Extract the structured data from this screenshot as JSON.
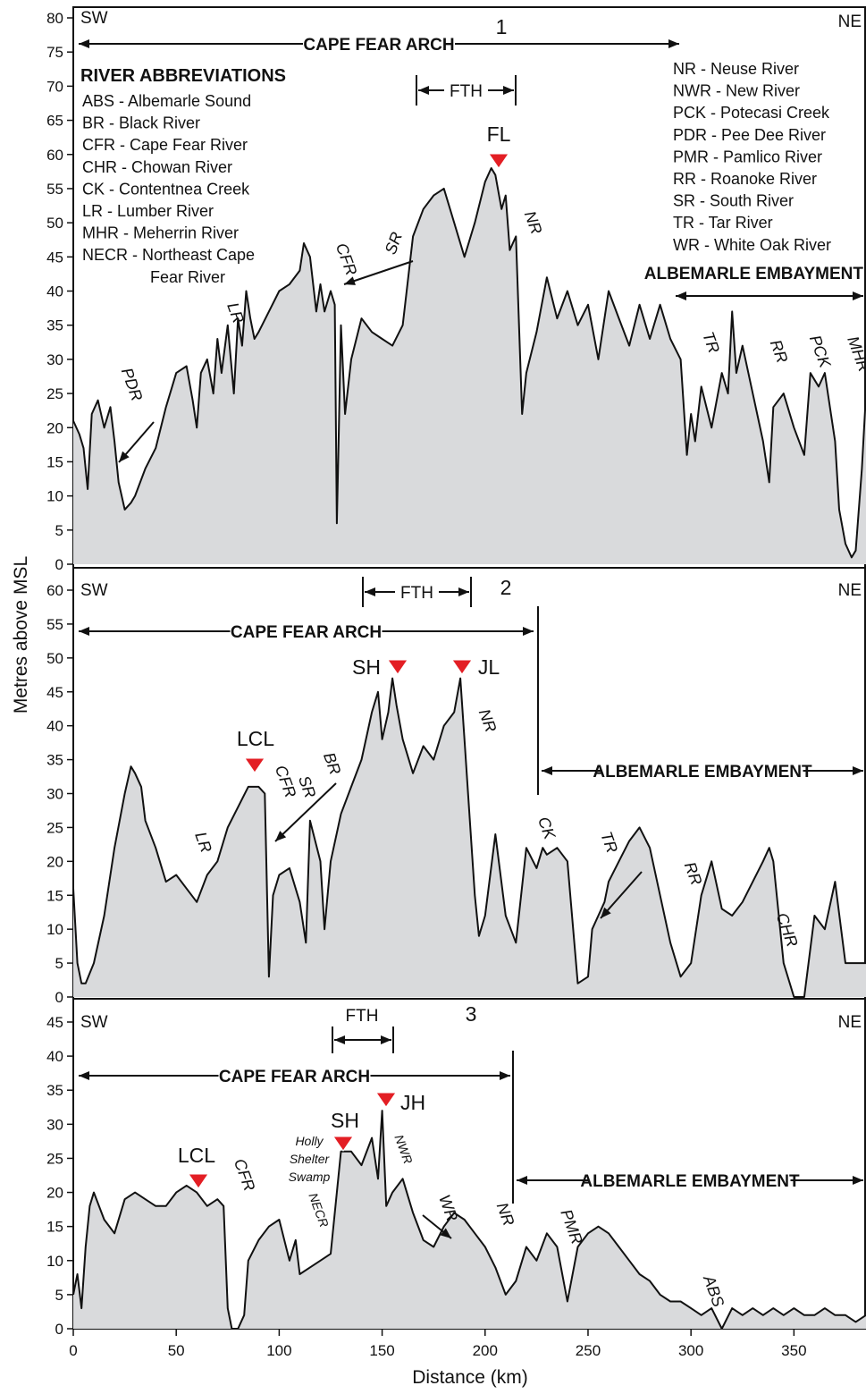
{
  "chart_data": {
    "type": "area",
    "xlabel": "Distance (km)",
    "ylabel": "Metres above MSL",
    "xlim": [
      0,
      385
    ],
    "xticks": [
      0,
      50,
      100,
      150,
      200,
      250,
      300,
      350
    ],
    "xtick_labels": [
      "0",
      "50",
      "100",
      "150",
      "200",
      "250",
      "300",
      "350"
    ],
    "panels": [
      {
        "id": "1",
        "ylim": [
          0,
          80
        ],
        "yticks": [
          0,
          5,
          10,
          15,
          20,
          25,
          30,
          35,
          40,
          45,
          50,
          55,
          60,
          65,
          70,
          75,
          80
        ],
        "sw": "SW",
        "ne": "NE",
        "number": "1",
        "arch_label": "CAPE FEAR ARCH",
        "fth_label": "FTH",
        "embayment_label": "ALBEMARLE EMBAYMENT",
        "peaks": [
          {
            "label": "FL",
            "x": 203,
            "y": 58
          }
        ],
        "river_labels": [
          "PDR",
          "LR",
          "CFR",
          "SR",
          "NR",
          "TR",
          "RR",
          "PCK",
          "MHR"
        ],
        "x": [
          0,
          3,
          5,
          7,
          9,
          12,
          15,
          18,
          20,
          22,
          25,
          28,
          30,
          35,
          40,
          45,
          48,
          50,
          55,
          58,
          60,
          62,
          65,
          68,
          70,
          72,
          75,
          78,
          80,
          82,
          84,
          86,
          88,
          90,
          95,
          100,
          105,
          110,
          112,
          115,
          118,
          120,
          122,
          125,
          127,
          128,
          129,
          130,
          132,
          135,
          140,
          145,
          150,
          155,
          160,
          165,
          170,
          175,
          180,
          185,
          190,
          195,
          200,
          203,
          205,
          208,
          210,
          212,
          215,
          218,
          220,
          225,
          230,
          235,
          240,
          245,
          250,
          255,
          260,
          265,
          270,
          275,
          280,
          285,
          290,
          295,
          298,
          300,
          302,
          305,
          310,
          315,
          318,
          320,
          322,
          325,
          330,
          335,
          338,
          340,
          345,
          350,
          355,
          358,
          360,
          362,
          365,
          368,
          370,
          372,
          375,
          378,
          380,
          383,
          385
        ],
        "values": [
          21,
          19,
          17,
          11,
          22,
          24,
          20,
          23,
          18,
          12,
          8,
          9,
          10,
          14,
          17,
          23,
          26,
          28,
          29,
          24,
          20,
          28,
          30,
          25,
          33,
          28,
          35,
          25,
          36,
          32,
          40,
          36,
          33,
          34,
          37,
          40,
          41,
          43,
          47,
          45,
          37,
          41,
          37,
          40,
          38,
          6,
          20,
          35,
          22,
          30,
          36,
          34,
          33,
          32,
          35,
          48,
          52,
          54,
          55,
          50,
          45,
          50,
          56,
          58,
          57,
          52,
          54,
          46,
          48,
          22,
          28,
          34,
          42,
          36,
          40,
          35,
          38,
          30,
          40,
          36,
          32,
          38,
          33,
          38,
          33,
          30,
          16,
          22,
          18,
          26,
          20,
          28,
          25,
          37,
          28,
          32,
          25,
          18,
          12,
          23,
          25,
          20,
          16,
          28,
          27,
          26,
          28,
          22,
          18,
          8,
          3,
          1,
          2,
          14,
          25
        ]
      },
      {
        "id": "2",
        "ylim": [
          0,
          60
        ],
        "yticks": [
          0,
          5,
          10,
          15,
          20,
          25,
          30,
          35,
          40,
          45,
          50,
          55,
          60
        ],
        "sw": "SW",
        "ne": "NE",
        "number": "2",
        "arch_label": "CAPE FEAR ARCH",
        "fth_label": "FTH",
        "embayment_label": "ALBEMARLE EMBAYMENT",
        "peaks": [
          {
            "label": "SH",
            "x": 157,
            "y": 47
          },
          {
            "label": "JL",
            "x": 188,
            "y": 47
          },
          {
            "label": "LCL",
            "x": 88,
            "y": 32
          }
        ],
        "river_labels": [
          "LR",
          "CFR",
          "BR",
          "SR",
          "NR",
          "CK",
          "TR",
          "RR",
          "CHR"
        ],
        "x": [
          0,
          2,
          4,
          6,
          10,
          15,
          20,
          25,
          28,
          30,
          33,
          35,
          40,
          45,
          50,
          55,
          60,
          65,
          70,
          75,
          80,
          85,
          90,
          93,
          95,
          97,
          100,
          105,
          110,
          113,
          115,
          120,
          122,
          125,
          130,
          135,
          140,
          145,
          148,
          150,
          153,
          155,
          157,
          160,
          165,
          170,
          175,
          180,
          185,
          188,
          190,
          195,
          197,
          200,
          205,
          210,
          215,
          220,
          225,
          228,
          230,
          235,
          240,
          245,
          250,
          252,
          255,
          258,
          260,
          265,
          270,
          275,
          280,
          285,
          290,
          295,
          300,
          305,
          310,
          315,
          320,
          325,
          330,
          335,
          338,
          340,
          345,
          350,
          355,
          360,
          365,
          370,
          375,
          380,
          385
        ],
        "values": [
          16,
          5,
          2,
          2,
          5,
          12,
          22,
          30,
          34,
          33,
          31,
          26,
          22,
          17,
          18,
          16,
          14,
          18,
          20,
          25,
          28,
          31,
          31,
          30,
          3,
          15,
          18,
          19,
          14,
          8,
          26,
          20,
          10,
          20,
          27,
          31,
          35,
          42,
          45,
          38,
          42,
          47,
          43,
          38,
          33,
          37,
          35,
          40,
          42,
          47,
          38,
          15,
          9,
          12,
          24,
          12,
          8,
          22,
          19,
          22,
          21,
          22,
          20,
          2,
          3,
          10,
          12,
          14,
          17,
          20,
          23,
          25,
          22,
          15,
          8,
          3,
          5,
          15,
          20,
          13,
          12,
          14,
          17,
          20,
          22,
          20,
          5,
          0,
          0,
          12,
          10,
          17,
          5,
          5,
          5
        ]
      },
      {
        "id": "3",
        "ylim": [
          0,
          45
        ],
        "yticks": [
          0,
          5,
          10,
          15,
          20,
          25,
          30,
          35,
          40,
          45
        ],
        "sw": "SW",
        "ne": "NE",
        "number": "3",
        "arch_label": "CAPE FEAR ARCH",
        "fth_label": "FTH",
        "embayment_label": "ALBEMARLE EMBAYMENT",
        "peaks": [
          {
            "label": "LCL",
            "x": 60,
            "y": 21
          },
          {
            "label": "SH",
            "x": 130,
            "y": 27
          },
          {
            "label": "JH",
            "x": 152,
            "y": 32
          }
        ],
        "river_labels": [
          "CFR",
          "NECR",
          "NWR",
          "WR",
          "NR",
          "PMR",
          "ABS"
        ],
        "swamp_label": [
          "Holly",
          "Shelter",
          "Swamp"
        ],
        "x": [
          0,
          2,
          4,
          6,
          8,
          10,
          15,
          20,
          25,
          30,
          35,
          40,
          45,
          50,
          55,
          60,
          65,
          70,
          73,
          75,
          77,
          80,
          83,
          85,
          90,
          95,
          100,
          105,
          108,
          110,
          115,
          120,
          125,
          128,
          130,
          135,
          140,
          145,
          148,
          150,
          152,
          155,
          160,
          165,
          170,
          175,
          180,
          185,
          190,
          195,
          200,
          205,
          210,
          215,
          220,
          225,
          230,
          235,
          240,
          245,
          250,
          255,
          260,
          265,
          270,
          275,
          280,
          285,
          290,
          295,
          300,
          305,
          310,
          315,
          320,
          325,
          330,
          335,
          340,
          345,
          350,
          355,
          360,
          365,
          370,
          375,
          380,
          385
        ],
        "values": [
          5,
          8,
          3,
          12,
          18,
          20,
          16,
          14,
          19,
          20,
          19,
          18,
          18,
          20,
          21,
          20,
          18,
          19,
          18,
          3,
          0,
          0,
          2,
          10,
          13,
          15,
          16,
          10,
          13,
          8,
          9,
          10,
          11,
          20,
          26,
          26,
          24,
          28,
          22,
          32,
          18,
          20,
          22,
          17,
          13,
          12,
          15,
          17,
          16,
          14,
          12,
          9,
          5,
          7,
          12,
          10,
          14,
          12,
          4,
          12,
          14,
          15,
          14,
          12,
          10,
          8,
          7,
          5,
          4,
          4,
          3,
          2,
          3,
          0,
          3,
          2,
          3,
          2,
          3,
          2,
          3,
          2,
          2,
          3,
          2,
          2,
          1,
          2
        ]
      }
    ],
    "river_abbreviations": [
      "ABS - Albemarle Sound",
      "BR - Black River",
      "CFR - Cape Fear River",
      "CHR - Chowan River",
      "CK - Contentnea Creek",
      "LR - Lumber River",
      "MHR - Meherrin River",
      "NECR - Northeast Cape",
      "Fear River",
      "NR - Neuse River",
      "NWR - New River",
      "PCK - Potecasi Creek",
      "PDR - Pee Dee River",
      "PMR - Pamlico River",
      "RR - Roanoke River",
      "SR - South River",
      "TR - Tar River",
      "WR - White Oak River"
    ],
    "abbreviations_title": "RIVER ABBREVIATIONS",
    "colors": {
      "fill": "#d9dadc",
      "line": "#111111",
      "marker": "#e31e24"
    }
  }
}
